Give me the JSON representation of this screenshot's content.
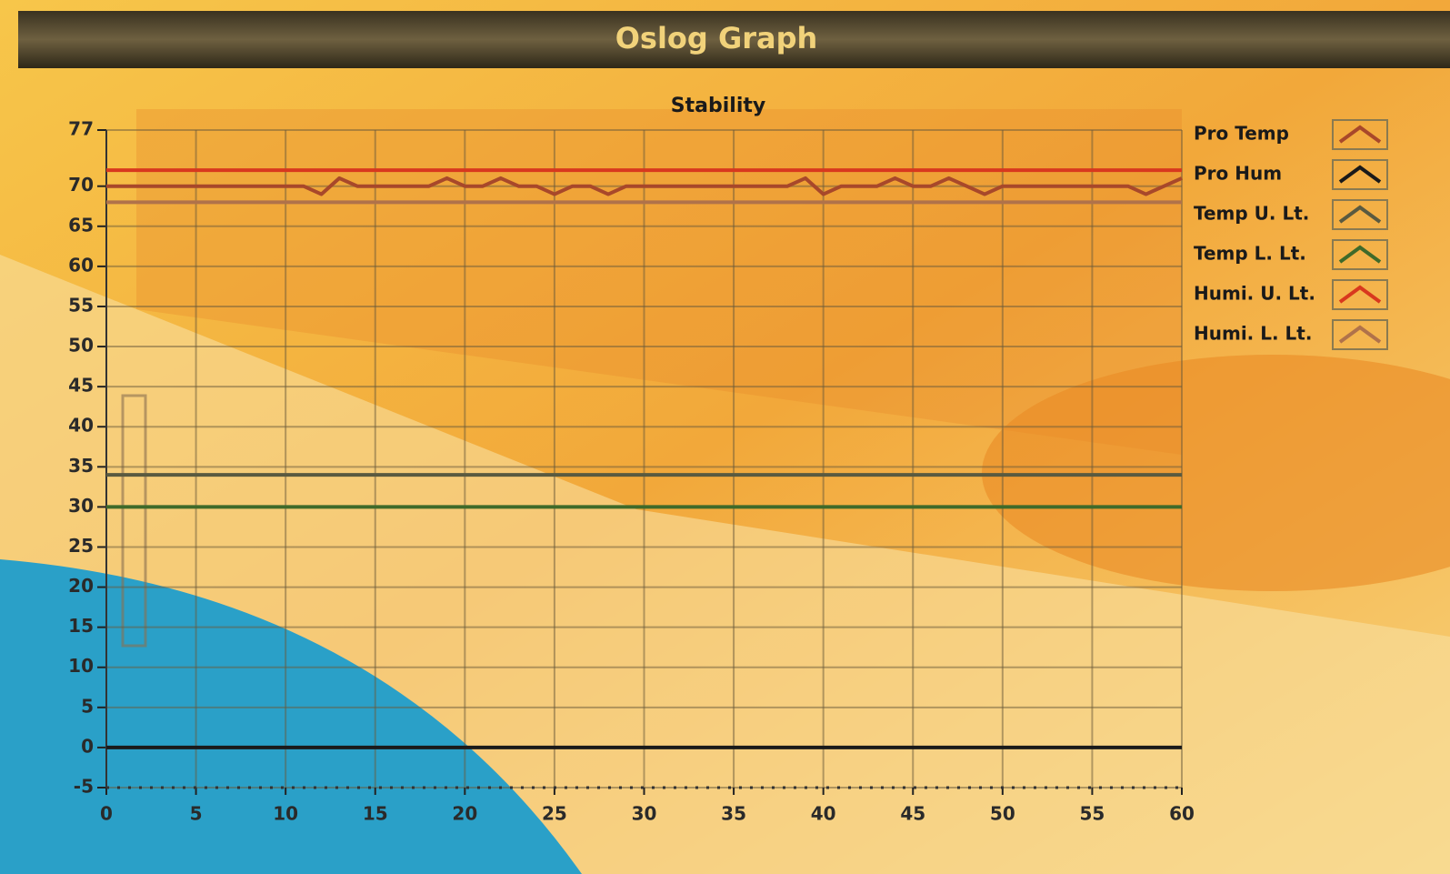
{
  "header": {
    "title": "Oslog Graph"
  },
  "chart_data": {
    "type": "line",
    "title": "Stability",
    "xlim": [
      0,
      60
    ],
    "xticks": [
      0,
      5,
      10,
      15,
      20,
      25,
      30,
      35,
      40,
      45,
      50,
      55,
      60
    ],
    "ylim": [
      -5,
      77
    ],
    "yticks": [
      -5,
      0,
      5,
      10,
      15,
      20,
      25,
      30,
      35,
      40,
      45,
      50,
      55,
      60,
      65,
      70,
      77
    ],
    "grid": true,
    "legend": "right",
    "series": [
      {
        "name": "Pro Temp",
        "color": "#a8482a",
        "x": [
          0,
          11,
          12,
          13,
          14,
          18,
          19,
          20,
          21,
          22,
          23,
          24,
          25,
          26,
          27,
          28,
          29,
          38,
          39,
          40,
          41,
          43,
          44,
          45,
          46,
          47,
          48,
          49,
          50,
          57,
          58,
          60
        ],
        "values": [
          70,
          70,
          69,
          71,
          70,
          70,
          71,
          70,
          70,
          71,
          70,
          70,
          69,
          70,
          70,
          69,
          70,
          70,
          71,
          69,
          70,
          70,
          71,
          70,
          70,
          71,
          70,
          69,
          70,
          70,
          69,
          71
        ]
      },
      {
        "name": "Pro Hum",
        "color": "#1a1a1a",
        "x": [
          0,
          60
        ],
        "values": [
          0,
          0
        ]
      },
      {
        "name": "Temp U. Lt.",
        "color": "#5a5a40",
        "x": [
          0,
          60
        ],
        "values": [
          34,
          34
        ]
      },
      {
        "name": "Temp L. Lt.",
        "color": "#3f6a2a",
        "x": [
          0,
          60
        ],
        "values": [
          30,
          30
        ]
      },
      {
        "name": "Humi. U. Lt.",
        "color": "#d8381e",
        "x": [
          0,
          60
        ],
        "values": [
          72,
          72
        ]
      },
      {
        "name": "Humi. L. Lt.",
        "color": "#b0724a",
        "x": [
          0,
          60
        ],
        "values": [
          68,
          68
        ]
      }
    ]
  }
}
